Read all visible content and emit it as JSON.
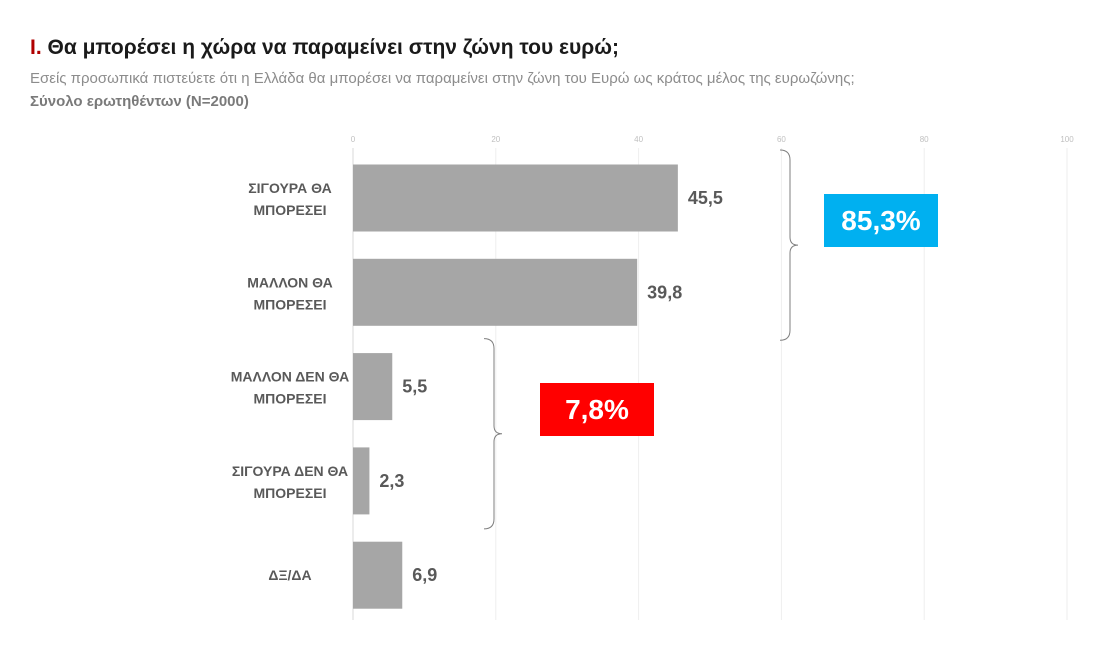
{
  "header": {
    "title_num": "I.",
    "title_text": " Θα μπορέσει η χώρα να παραμείνει στην ζώνη του ευρώ;",
    "subtitle": "Εσείς προσωπικά πιστεύετε ότι η Ελλάδα θα μπορέσει να παραμείνει στην ζώνη του Ευρώ ως κράτος μέλος της ευρωζώνης;",
    "base": "Σύνολο ερωτηθέντων (N=2000)"
  },
  "chart_data": {
    "type": "bar",
    "orientation": "horizontal",
    "categories": [
      [
        "ΣΙΓΟΥΡΑ ΘΑ",
        "ΜΠΟΡΕΣΕΙ"
      ],
      [
        "ΜΑΛΛΟΝ ΘΑ",
        "ΜΠΟΡΕΣΕΙ"
      ],
      [
        "ΜΑΛΛΟΝ ΔΕΝ ΘΑ",
        "ΜΠΟΡΕΣΕΙ"
      ],
      [
        "ΣΙΓΟΥΡΑ ΔΕΝ ΘΑ",
        "ΜΠΟΡΕΣΕΙ"
      ],
      [
        "ΔΞ/ΔΑ"
      ]
    ],
    "values": [
      45.5,
      39.8,
      5.5,
      2.3,
      6.9
    ],
    "value_labels": [
      "45,5",
      "39,8",
      "5,5",
      "2,3",
      "6,9"
    ],
    "xlim": [
      0,
      100
    ],
    "ticks": [
      0,
      20,
      40,
      60,
      80,
      100
    ],
    "tick_labels": [
      "0",
      "20",
      "40",
      "60",
      "80",
      "100"
    ],
    "grid": true,
    "legend": "none",
    "bar_color": "#a6a6a6",
    "annotations": [
      {
        "label": "85,3%",
        "groups": [
          0,
          1
        ],
        "color": "#00b0f0"
      },
      {
        "label": "7,8%",
        "groups": [
          2,
          3
        ],
        "color": "#ff0000"
      }
    ]
  }
}
